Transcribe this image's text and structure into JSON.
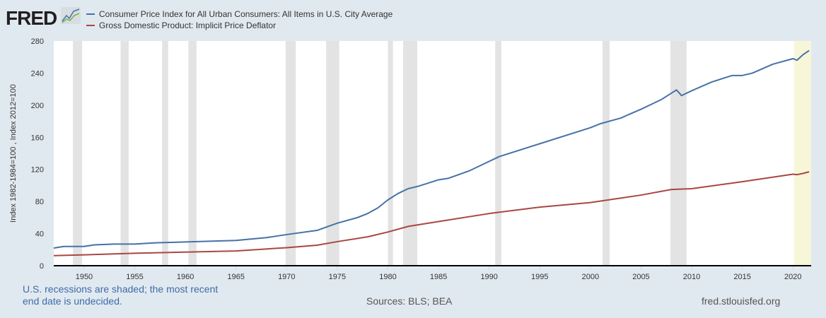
{
  "logo": "FRED",
  "footer": {
    "note": "U.S. recessions are shaded; the most recent end date is undecided.",
    "sources": "Sources: BLS; BEA",
    "url": "fred.stlouisfed.org"
  },
  "chart_data": {
    "type": "line",
    "ylabel": "Index 1982-1984=100 , Index 2012=100",
    "xlim": [
      1947,
      2021.8
    ],
    "ylim": [
      0,
      280
    ],
    "yticks": [
      0,
      40,
      80,
      120,
      160,
      200,
      240,
      280
    ],
    "xticks": [
      1950,
      1955,
      1960,
      1965,
      1970,
      1975,
      1980,
      1985,
      1990,
      1995,
      2000,
      2005,
      2010,
      2015,
      2020
    ],
    "legend_position": "top-left",
    "recessions": [
      [
        1948.9,
        1949.8
      ],
      [
        1953.6,
        1954.4
      ],
      [
        1957.7,
        1958.3
      ],
      [
        1960.3,
        1961.1
      ],
      [
        1969.9,
        1970.9
      ],
      [
        1973.9,
        1975.2
      ],
      [
        1980.0,
        1980.5
      ],
      [
        1981.5,
        1982.9
      ],
      [
        1990.6,
        1991.2
      ],
      [
        2001.2,
        2001.9
      ],
      [
        2007.9,
        2009.5
      ]
    ],
    "recent_recession": [
      2020.1,
      2021.8
    ],
    "series": [
      {
        "name": "Consumer Price Index for All Urban Consumers: All Items in U.S. City Average",
        "color": "#4572a7",
        "x": [
          1947,
          1948,
          1949,
          1950,
          1951,
          1953,
          1955,
          1957,
          1960,
          1965,
          1968,
          1970,
          1973,
          1975,
          1977,
          1978,
          1979,
          1980,
          1981,
          1982,
          1983,
          1985,
          1986,
          1988,
          1990,
          1991,
          1995,
          2000,
          2001,
          2003,
          2005,
          2006,
          2007,
          2008,
          2008.5,
          2009,
          2010,
          2012,
          2014,
          2015,
          2016,
          2018,
          2020,
          2020.4,
          2021,
          2021.6
        ],
        "values": [
          22,
          24,
          24,
          24,
          26,
          27,
          27,
          28.5,
          29.6,
          31.5,
          35,
          38.8,
          44,
          53,
          60,
          65,
          72,
          82,
          90,
          96,
          99,
          107,
          109,
          118,
          130,
          136,
          152,
          172,
          177,
          184,
          195,
          201,
          207,
          215,
          219,
          212,
          218,
          229,
          237,
          237,
          240,
          251,
          258,
          256,
          263,
          268
        ]
      },
      {
        "name": "Gross Domestic Product: Implicit Price Deflator",
        "color": "#aa4643",
        "x": [
          1947,
          1950,
          1955,
          1960,
          1965,
          1970,
          1973,
          1975,
          1978,
          1980,
          1982,
          1985,
          1990,
          1995,
          2000,
          2005,
          2008,
          2010,
          2015,
          2020,
          2020.4,
          2021,
          2021.6
        ],
        "values": [
          12.5,
          13.5,
          15.5,
          17,
          18.4,
          22.5,
          25.5,
          30,
          36,
          42,
          49,
          55,
          65,
          73,
          78.7,
          88,
          95,
          96,
          104.7,
          114,
          113.5,
          115,
          117
        ]
      }
    ]
  }
}
